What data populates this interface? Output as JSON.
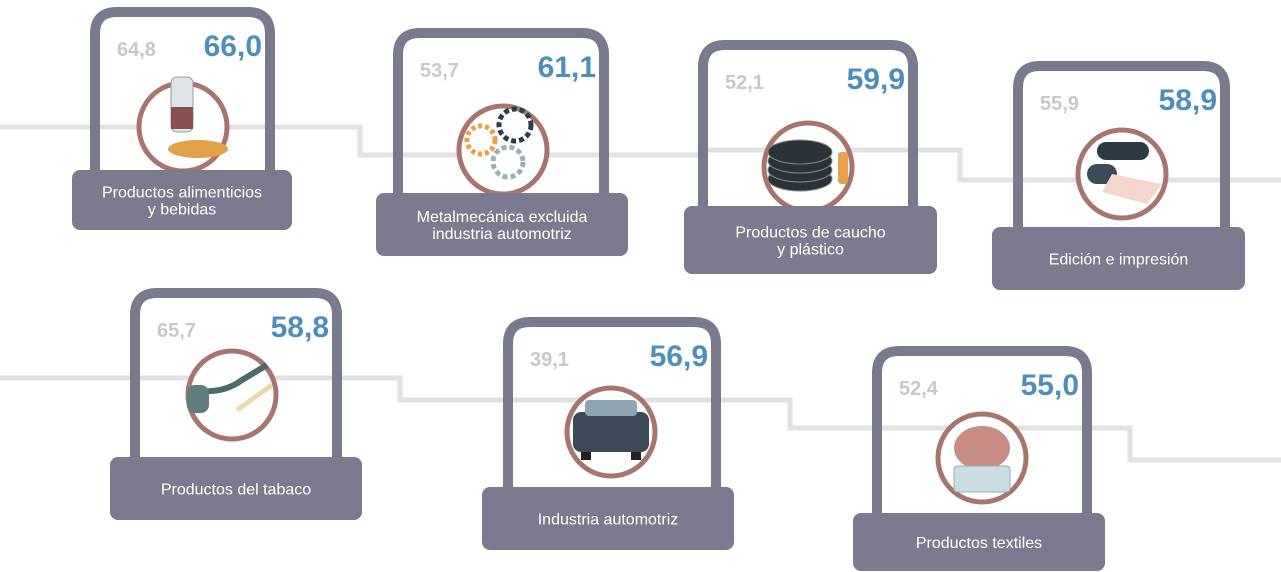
{
  "items": [
    {
      "label": [
        "Productos alimenticios",
        "y bebidas"
      ],
      "previous": "64,8",
      "current": "66,0"
    },
    {
      "label": [
        "Metalmecánica excluida",
        "industria automotriz"
      ],
      "previous": "53,7",
      "current": "61,1"
    },
    {
      "label": [
        "Productos de caucho",
        "y plástico"
      ],
      "previous": "52,1",
      "current": "59,9"
    },
    {
      "label": [
        "Edición e impresión"
      ],
      "previous": "55,9",
      "current": "58,9"
    },
    {
      "label": [
        "Productos del tabaco"
      ],
      "previous": "65,7",
      "current": "58,8"
    },
    {
      "label": [
        "Industria automotriz"
      ],
      "previous": "39,1",
      "current": "56,9"
    },
    {
      "label": [
        "Productos textiles"
      ],
      "previous": "52,4",
      "current": "55,0"
    }
  ]
}
